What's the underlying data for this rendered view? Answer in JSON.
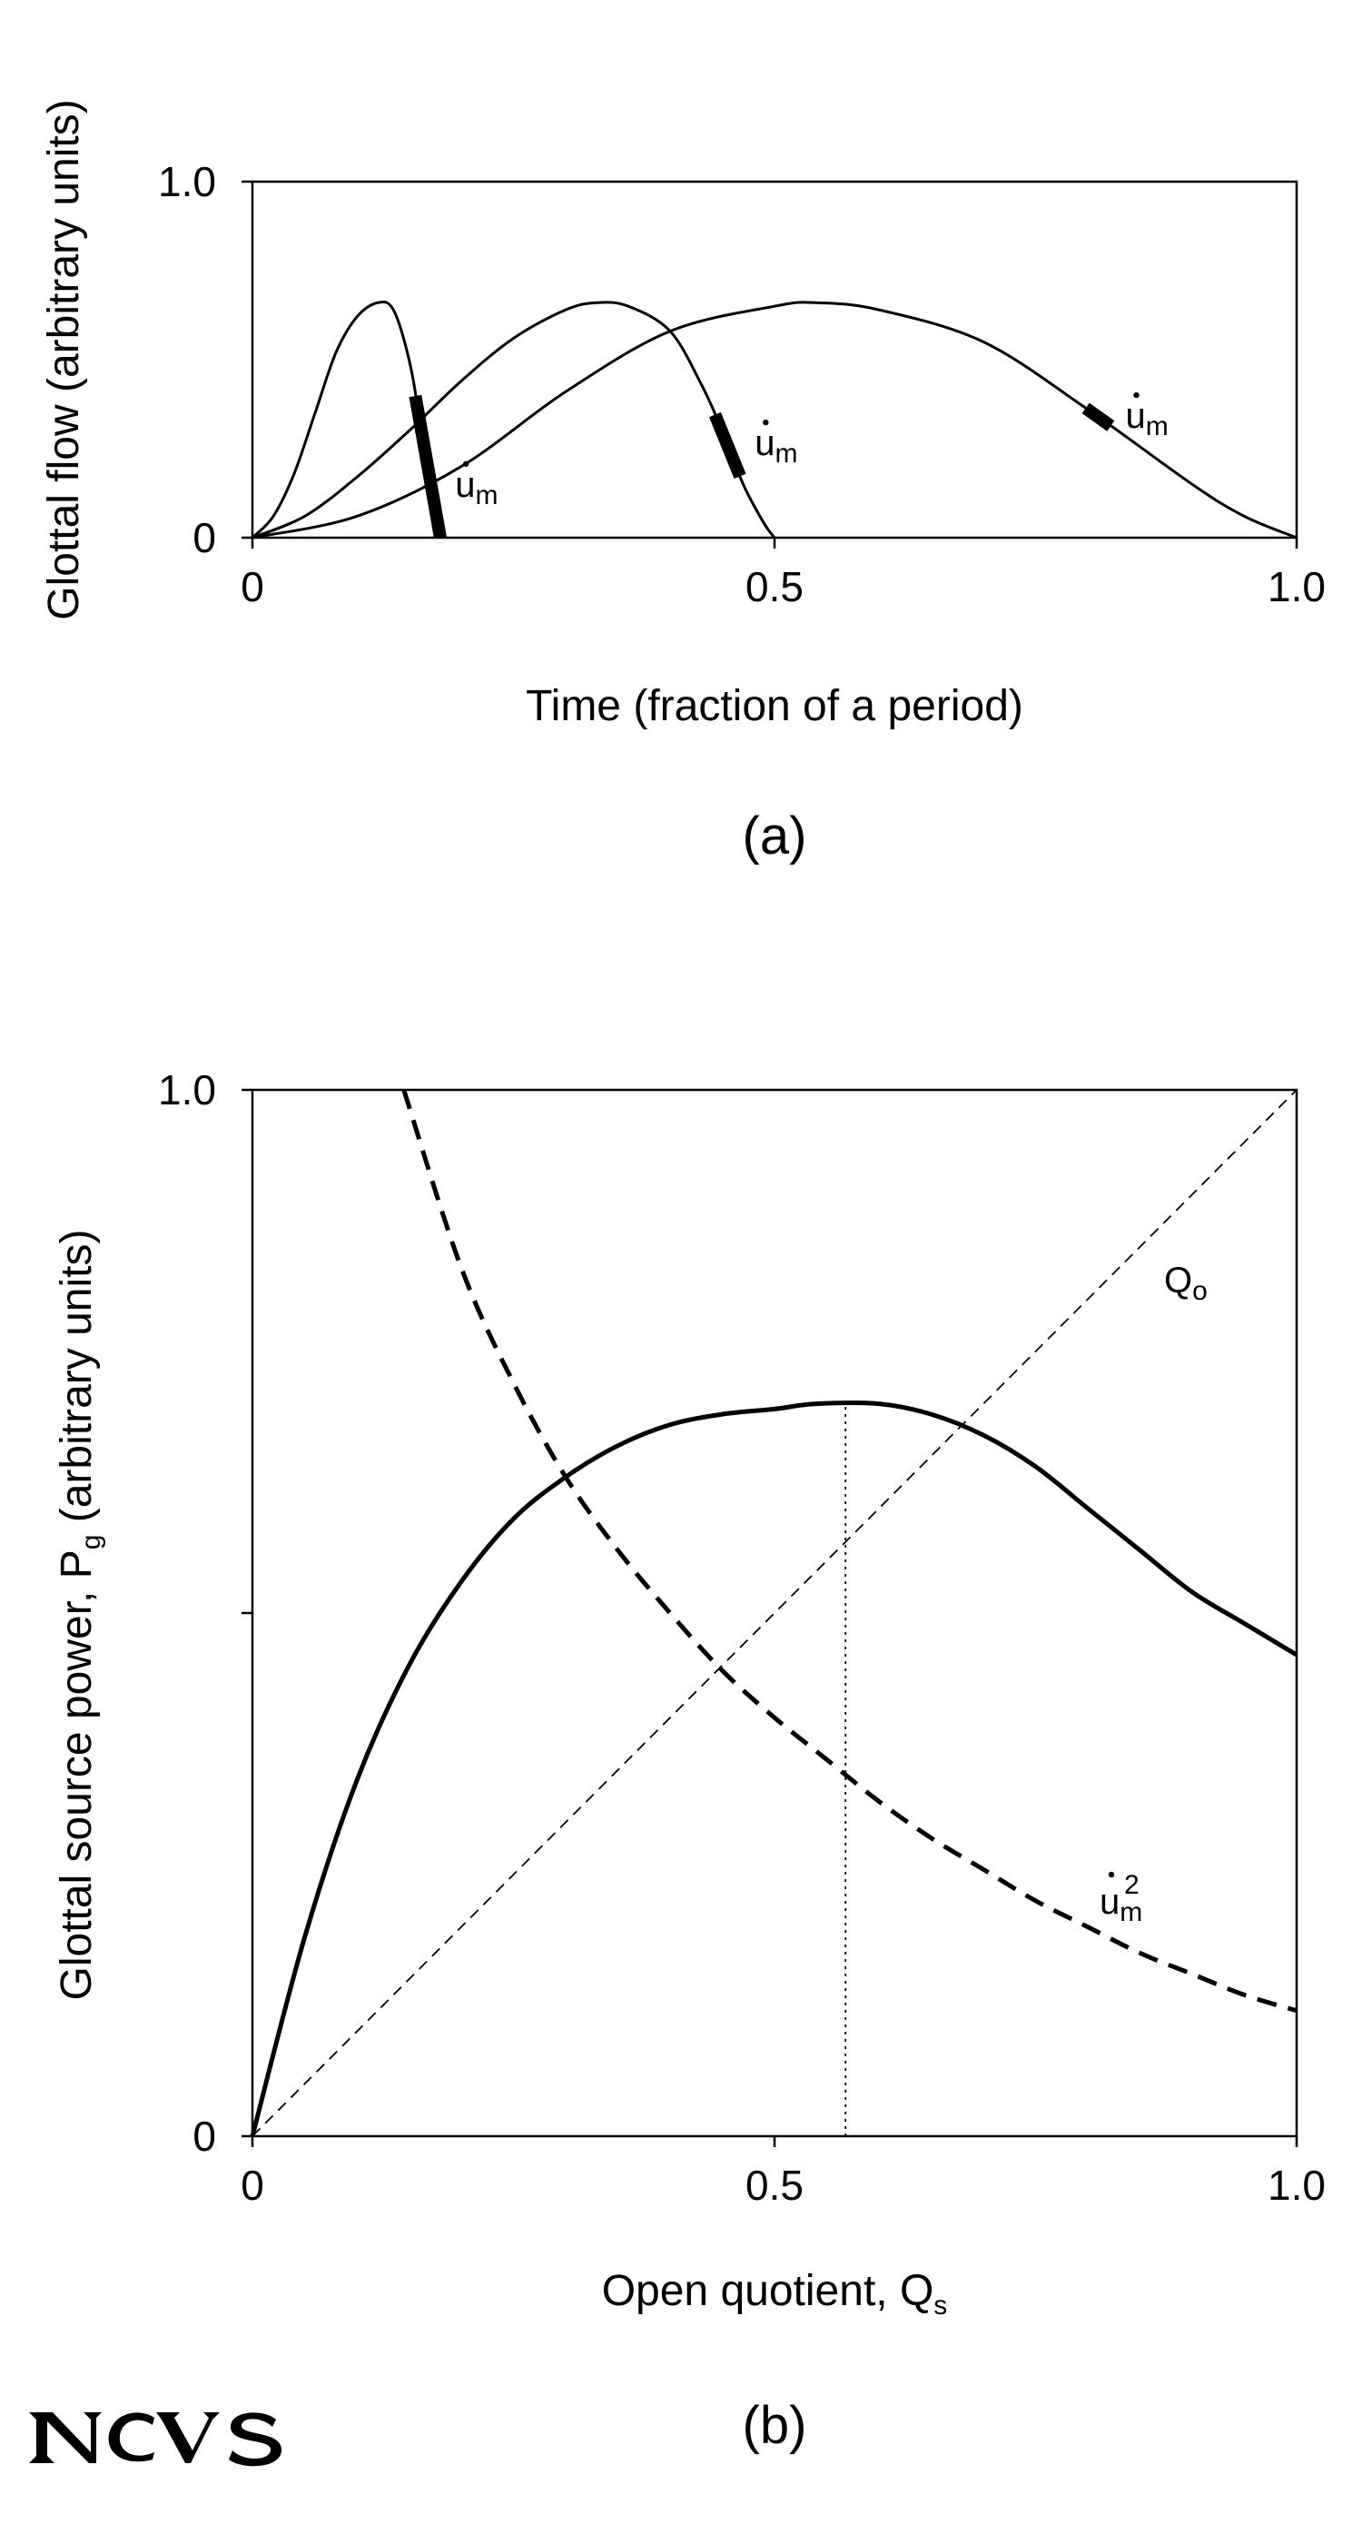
{
  "logo_text": "NCVS",
  "chart_data": [
    {
      "type": "line",
      "panel_label": "(a)",
      "xlabel": "Time (fraction of a period)",
      "ylabel": "Glottal flow (arbitrary units)",
      "xlim": [
        0,
        1.0
      ],
      "ylim": [
        0,
        1.0
      ],
      "x_tick_labels": [
        "0",
        "0.5",
        "1.0"
      ],
      "x_tick_values": [
        0,
        0.5,
        1.0
      ],
      "y_tick_labels": [
        "0",
        "1.0"
      ],
      "y_tick_values": [
        0,
        1.0
      ],
      "grid": false,
      "annotation_main": "u",
      "annotation_sub": "m",
      "series": [
        {
          "x": [
            0,
            0.02,
            0.04,
            0.06,
            0.08,
            0.1,
            0.12,
            0.135,
            0.15,
            0.16,
            0.17,
            0.175
          ],
          "y": [
            0,
            0.06,
            0.18,
            0.35,
            0.52,
            0.62,
            0.66,
            0.64,
            0.5,
            0.33,
            0.1,
            0
          ],
          "marker_x": 0.168
        },
        {
          "x": [
            0,
            0.05,
            0.1,
            0.15,
            0.2,
            0.25,
            0.3,
            0.33,
            0.36,
            0.4,
            0.43,
            0.45,
            0.47,
            0.49,
            0.5
          ],
          "y": [
            0,
            0.06,
            0.17,
            0.3,
            0.44,
            0.56,
            0.64,
            0.66,
            0.65,
            0.58,
            0.43,
            0.3,
            0.15,
            0.04,
            0
          ],
          "marker_x": 0.455
        },
        {
          "x": [
            0,
            0.1,
            0.2,
            0.3,
            0.4,
            0.5,
            0.54,
            0.6,
            0.7,
            0.8,
            0.9,
            0.95,
            1.0
          ],
          "y": [
            0,
            0.06,
            0.2,
            0.41,
            0.58,
            0.65,
            0.66,
            0.64,
            0.55,
            0.36,
            0.15,
            0.06,
            0
          ],
          "marker_x": 0.81
        }
      ]
    },
    {
      "type": "line",
      "panel_label": "(b)",
      "xlabel_main": "Open quotient, Q",
      "xlabel_sub": "s",
      "ylabel_main": "Glottal source power, P",
      "ylabel_sub": "g",
      "ylabel_rest": " (arbitrary units)",
      "xlim": [
        0,
        1.0
      ],
      "ylim": [
        0,
        1.0
      ],
      "x_tick_labels": [
        "0",
        "0.5",
        "1.0"
      ],
      "x_tick_values": [
        0,
        0.5,
        1.0
      ],
      "y_tick_labels": [
        "0",
        "1.0"
      ],
      "y_tick_values": [
        0,
        1.0
      ],
      "y_minor_ticks": [
        0.5
      ],
      "grid": false,
      "label_qo_main": "Q",
      "label_qo_sub": "o",
      "label_um_main": "u",
      "label_um_sub": "m",
      "label_um_sup": "2",
      "series": [
        {
          "style": "solid-thick",
          "x": [
            0,
            0.05,
            0.1,
            0.15,
            0.2,
            0.25,
            0.3,
            0.35,
            0.4,
            0.45,
            0.5,
            0.54,
            0.6,
            0.65,
            0.7,
            0.75,
            0.8,
            0.85,
            0.9,
            0.95,
            1.0
          ],
          "y": [
            0,
            0.19,
            0.34,
            0.45,
            0.53,
            0.59,
            0.63,
            0.66,
            0.68,
            0.69,
            0.695,
            0.7,
            0.7,
            0.69,
            0.67,
            0.64,
            0.6,
            0.56,
            0.52,
            0.49,
            0.46
          ]
        },
        {
          "style": "dashed-thick",
          "x": [
            0.145,
            0.2,
            0.25,
            0.3,
            0.35,
            0.4,
            0.45,
            0.5,
            0.55,
            0.6,
            0.65,
            0.7,
            0.75,
            0.8,
            0.85,
            0.9,
            0.95,
            1.0
          ],
          "y": [
            1.0,
            0.83,
            0.72,
            0.63,
            0.56,
            0.5,
            0.445,
            0.4,
            0.36,
            0.32,
            0.285,
            0.255,
            0.225,
            0.2,
            0.175,
            0.155,
            0.135,
            0.12
          ]
        },
        {
          "style": "dashed-thin",
          "x": [
            0,
            1.0
          ],
          "y": [
            0,
            1.0
          ]
        }
      ],
      "vertical_line_x": 0.568
    }
  ]
}
